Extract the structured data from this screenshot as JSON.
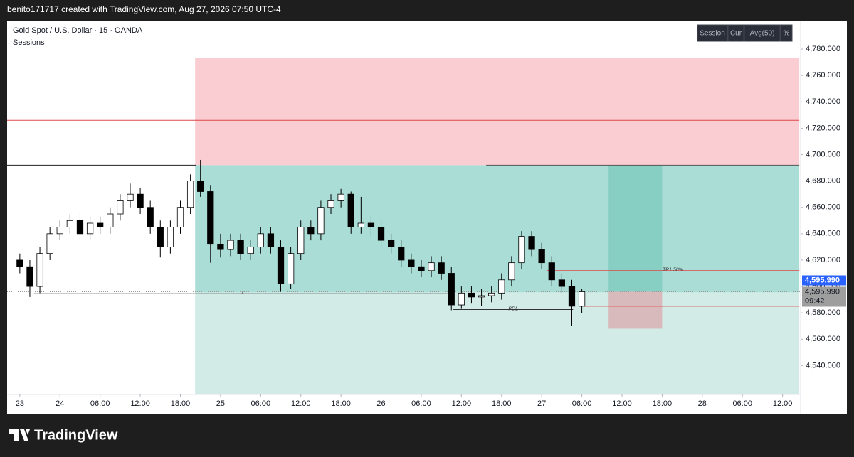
{
  "header": {
    "text": "benito171717 created with TradingView.com, Aug 27, 2026 07:50 UTC-4"
  },
  "footer": {
    "brand": "TradingView"
  },
  "chart_data": {
    "type": "candlestick",
    "title": "Gold Spot / U.S. Dollar · 15 · OANDA",
    "indicator": "Sessions",
    "buttons": [
      "Session",
      "Cur",
      "Avg(50)",
      "%"
    ],
    "x": [
      0,
      1.5,
      3,
      4.5,
      6,
      7.5,
      9,
      10.5,
      12,
      13.5,
      15,
      16.5,
      18,
      19.5,
      21,
      22.5,
      24,
      25.5,
      27,
      28.5,
      30,
      31.5,
      33,
      34.5,
      36,
      37.5,
      39,
      40.5,
      42,
      43.5,
      45,
      46.5,
      48,
      49.5,
      51,
      52.5,
      54,
      55.5,
      57,
      58.5,
      60,
      61.5,
      63,
      64.5,
      66,
      67.5,
      69,
      70.5,
      72,
      73.5,
      75,
      76.5,
      78,
      79.5,
      81,
      82.5,
      84
    ],
    "open": [
      4620,
      4615,
      4600,
      4625,
      4640,
      4645,
      4650,
      4640,
      4648,
      4645,
      4655,
      4665,
      4670,
      4660,
      4645,
      4630,
      4645,
      4660,
      4680,
      4672,
      4632,
      4628,
      4635,
      4625,
      4630,
      4640,
      4630,
      4602,
      4625,
      4645,
      4640,
      4660,
      4665,
      4670,
      4645,
      4648,
      4645,
      4635,
      4630,
      4620,
      4615,
      4612,
      4618,
      4610,
      4586,
      4595,
      4592,
      4593,
      4595,
      4605,
      4618,
      4638,
      4628,
      4618,
      4605,
      4600,
      4585
    ],
    "high": [
      4625,
      4620,
      4630,
      4645,
      4650,
      4655,
      4655,
      4653,
      4653,
      4660,
      4670,
      4678,
      4675,
      4665,
      4650,
      4650,
      4665,
      4685,
      4696,
      4677,
      4640,
      4640,
      4640,
      4635,
      4645,
      4645,
      4635,
      4630,
      4650,
      4650,
      4665,
      4670,
      4674,
      4672,
      4668,
      4653,
      4650,
      4640,
      4635,
      4625,
      4620,
      4623,
      4623,
      4615,
      4600,
      4600,
      4598,
      4600,
      4610,
      4623,
      4642,
      4642,
      4633,
      4623,
      4610,
      4605,
      4598
    ],
    "low": [
      4610,
      4592,
      4595,
      4620,
      4635,
      4640,
      4635,
      4635,
      4640,
      4640,
      4650,
      4660,
      4655,
      4640,
      4622,
      4625,
      4640,
      4655,
      4668,
      4618,
      4622,
      4623,
      4620,
      4620,
      4625,
      4625,
      4596,
      4598,
      4620,
      4635,
      4635,
      4655,
      4660,
      4640,
      4640,
      4638,
      4630,
      4625,
      4615,
      4610,
      4607,
      4607,
      4605,
      4582,
      4583,
      4587,
      4585,
      4588,
      4590,
      4600,
      4613,
      4623,
      4613,
      4600,
      4595,
      4570,
      4580
    ],
    "close": [
      4615,
      4600,
      4625,
      4640,
      4645,
      4650,
      4640,
      4648,
      4645,
      4655,
      4665,
      4670,
      4660,
      4645,
      4630,
      4645,
      4660,
      4680,
      4672,
      4632,
      4628,
      4635,
      4625,
      4630,
      4640,
      4630,
      4602,
      4625,
      4645,
      4640,
      4660,
      4665,
      4670,
      4645,
      4648,
      4645,
      4635,
      4630,
      4620,
      4615,
      4612,
      4618,
      4610,
      4586,
      4595,
      4592,
      4593,
      4595,
      4605,
      4618,
      4638,
      4628,
      4618,
      4605,
      4600,
      4585,
      4596
    ],
    "up_color": "#ffffff",
    "down_color": "#000000",
    "xlim": [
      -1.9,
      116.7
    ],
    "xticks": [
      {
        "value": 0,
        "label": "23"
      },
      {
        "value": 6,
        "label": "24"
      },
      {
        "value": 12,
        "label": "06:00"
      },
      {
        "value": 18,
        "label": "12:00"
      },
      {
        "value": 24,
        "label": "18:00"
      },
      {
        "value": 30,
        "label": "25"
      },
      {
        "value": 36,
        "label": "06:00"
      },
      {
        "value": 42,
        "label": "12:00"
      },
      {
        "value": 48,
        "label": "18:00"
      },
      {
        "value": 54,
        "label": "26"
      },
      {
        "value": 60,
        "label": "06:00"
      },
      {
        "value": 66,
        "label": "12:00"
      },
      {
        "value": 72,
        "label": "18:00"
      },
      {
        "value": 78,
        "label": "27"
      },
      {
        "value": 84,
        "label": "06:00"
      },
      {
        "value": 90,
        "label": "12:00"
      },
      {
        "value": 96,
        "label": "18:00"
      },
      {
        "value": 102,
        "label": "28"
      },
      {
        "value": 108,
        "label": "06:00"
      },
      {
        "value": 114,
        "label": "12:00"
      }
    ],
    "ylim": [
      4518.1,
      4800
    ],
    "yticks": [
      {
        "value": 4540,
        "label": "4,540.000"
      },
      {
        "value": 4560,
        "label": "4,560.000"
      },
      {
        "value": 4580,
        "label": "4,580.000"
      },
      {
        "value": 4600,
        "label": "4,600.000"
      },
      {
        "value": 4620,
        "label": "4,620.000"
      },
      {
        "value": 4640,
        "label": "4,640.000"
      },
      {
        "value": 4660,
        "label": "4,660.000"
      },
      {
        "value": 4680,
        "label": "4,680.000"
      },
      {
        "value": 4700,
        "label": "4,700.000"
      },
      {
        "value": 4720,
        "label": "4,720.000"
      },
      {
        "value": 4740,
        "label": "4,740.000"
      },
      {
        "value": 4760,
        "label": "4,760.000"
      },
      {
        "value": 4780,
        "label": "4,780.000"
      }
    ],
    "last_price": {
      "value": 4595.99,
      "label": "4,595.990"
    },
    "countdown": "09:42",
    "zones": [
      {
        "color": "#f9cdd1",
        "x": [
          26.2,
          116.5
        ],
        "y": [
          4692,
          4773.5
        ]
      },
      {
        "color": "#a9ddd5",
        "x": [
          26.2,
          116.5
        ],
        "y": [
          4595.5,
          4692
        ]
      },
      {
        "color": "#d2ebe6",
        "x": [
          26.2,
          116.5
        ],
        "y": [
          4518.1,
          4595.5
        ]
      },
      {
        "color": "#88cfc3",
        "x": [
          88,
          96
        ],
        "y": [
          4596,
          4692
        ]
      },
      {
        "color": "#d9babc",
        "x": [
          88,
          96
        ],
        "y": [
          4568,
          4596
        ]
      }
    ],
    "lines": [
      {
        "color": "#e04848",
        "x": [
          -1.9,
          116.5
        ],
        "y": 4726
      },
      {
        "color": "#222222",
        "x": [
          -1.9,
          26.4
        ],
        "y": 4692
      },
      {
        "color": "#555555",
        "x": [
          69.7,
          116.5
        ],
        "y": 4692
      },
      {
        "color": "#e04848",
        "x": [
          78.7,
          116.5
        ],
        "y": 4612,
        "label": "TP1 50%"
      },
      {
        "color": "#e04848",
        "x": [
          84.3,
          116.5
        ],
        "y": 4585
      },
      {
        "color": "#333333",
        "x": [
          2.1,
          64.5
        ],
        "y": 4594.5,
        "label": "X"
      },
      {
        "color": "#333333",
        "x": [
          64.8,
          82.7
        ],
        "y": 4582.5,
        "label": "PDL"
      }
    ]
  }
}
